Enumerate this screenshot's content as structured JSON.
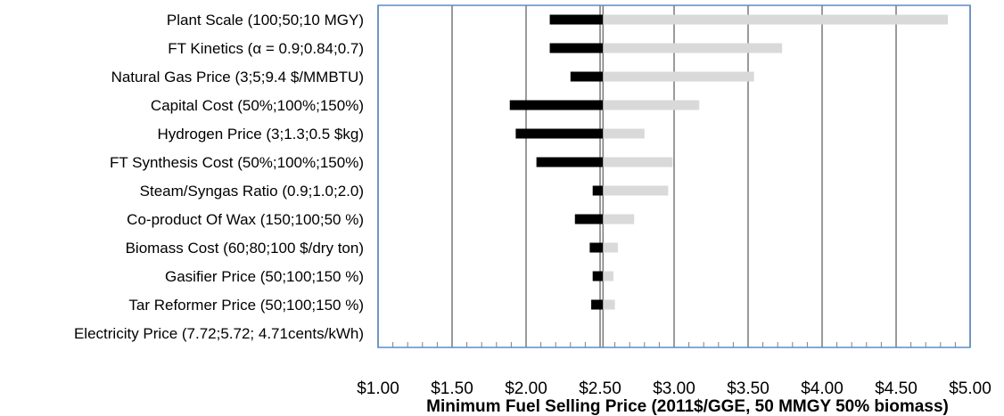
{
  "chart_data": {
    "type": "bar",
    "subtype": "tornado",
    "title": "",
    "xlabel": "Minimum Fuel Selling Price (2011$/GGE, 50 MMGY 50% biomass)",
    "ylabel": "",
    "xlim": [
      1.0,
      5.0
    ],
    "x_ticks": [
      1.0,
      1.5,
      2.0,
      2.5,
      3.0,
      3.5,
      4.0,
      4.5,
      5.0
    ],
    "x_tick_labels": [
      "$1.00",
      "$1.50",
      "$2.00",
      "$2.50",
      "$3.00",
      "$3.50",
      "$4.00",
      "$4.50",
      "$5.00"
    ],
    "baseline": 2.52,
    "grid": true,
    "categories": [
      "Plant Scale (100;50;10 MGY)",
      "FT Kinetics (α = 0.9;0.84;0.7)",
      "Natural Gas Price (3;5;9.4 $/MMBTU)",
      "Capital Cost (50%;100%;150%)",
      "Hydrogen Price (3;1.3;0.5 $kg)",
      "FT Synthesis Cost (50%;100%;150%)",
      "Steam/Syngas Ratio (0.9;1.0;2.0)",
      "Co-product Of Wax (150;100;50 %)",
      "Biomass Cost (60;80;100 $/dry ton)",
      "Gasifier Price (50;100;150 %)",
      "Tar Reformer Price (50;100;150 %)",
      "Electricity Price (7.72;5.72; 4.71cents/kWh)"
    ],
    "series": [
      {
        "color": "#000000",
        "values": [
          2.16,
          2.16,
          2.3,
          1.89,
          1.93,
          2.07,
          2.45,
          2.33,
          2.43,
          2.45,
          2.44,
          2.52
        ]
      },
      {
        "color": "#d9d9d9",
        "values": [
          4.85,
          3.73,
          3.54,
          3.17,
          2.8,
          2.99,
          2.96,
          2.73,
          2.62,
          2.59,
          2.6,
          2.52
        ]
      }
    ],
    "colors": {
      "frame": "#5b8cc9",
      "grid": "#808080"
    }
  }
}
